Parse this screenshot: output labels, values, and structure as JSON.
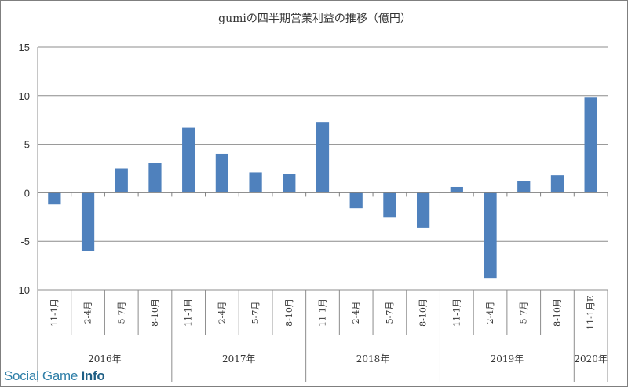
{
  "chart_data": {
    "type": "bar",
    "title": "gumiの四半期営業利益の推移（億円）",
    "xlabel": "",
    "ylabel": "",
    "ylim": [
      -10,
      15
    ],
    "yticks": [
      -10,
      -5,
      0,
      5,
      10,
      15
    ],
    "grid": true,
    "color": "#4f81bd",
    "categories": [
      "11-1月",
      "2-4月",
      "5-7月",
      "8-10月",
      "11-1月",
      "2-4月",
      "5-7月",
      "8-10月",
      "11-1月",
      "2-4月",
      "5-7月",
      "8-10月",
      "11-1月",
      "2-4月",
      "5-7月",
      "8-10月",
      "11-1月E"
    ],
    "values": [
      -1.2,
      -6.0,
      2.5,
      3.1,
      6.7,
      4.0,
      2.1,
      1.9,
      7.3,
      -1.6,
      -2.5,
      -3.6,
      0.6,
      -8.8,
      1.2,
      1.8,
      9.8
    ],
    "groups": [
      {
        "label": "2016年",
        "count": 4
      },
      {
        "label": "2017年",
        "count": 4
      },
      {
        "label": "2018年",
        "count": 4
      },
      {
        "label": "2019年",
        "count": 4
      },
      {
        "label": "2020年",
        "count": 1
      }
    ]
  },
  "watermark": {
    "part1": "Social Game ",
    "part2": "Info"
  }
}
